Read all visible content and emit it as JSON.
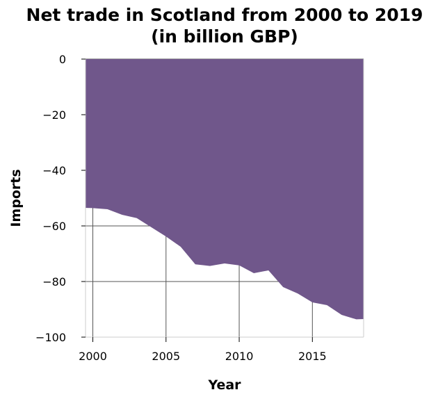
{
  "chart_data": {
    "type": "area",
    "title_line1": "Net trade in Scotland from 2000 to 2019",
    "title_line2": "(in billion GBP)",
    "xlabel": "Year",
    "ylabel": "Imports",
    "xlim": [
      1999.5,
      2018.5
    ],
    "ylim": [
      -100,
      0
    ],
    "x_ticks": [
      2000,
      2005,
      2010,
      2015
    ],
    "y_ticks": [
      0,
      -20,
      -40,
      -60,
      -80,
      -100
    ],
    "y_tick_labels": [
      "0",
      "−20",
      "−40",
      "−60",
      "−80",
      "−100"
    ],
    "grid": true,
    "fill_color": "#70578b",
    "series": [
      {
        "x": [
          1999.5,
          2000,
          2001,
          2002,
          2003,
          2004,
          2005,
          2006,
          2007,
          2008,
          2009,
          2010,
          2011,
          2012,
          2013,
          2014,
          2015,
          2016,
          2017,
          2018,
          2018.5
        ],
        "y": [
          -53.5,
          -53.6,
          -54,
          -56,
          -57.2,
          -60.5,
          -63.8,
          -67.5,
          -73.8,
          -74.4,
          -73.5,
          -74.2,
          -77,
          -76,
          -82,
          -84.3,
          -87.5,
          -88.5,
          -92,
          -93.6,
          -93.5
        ]
      }
    ]
  }
}
